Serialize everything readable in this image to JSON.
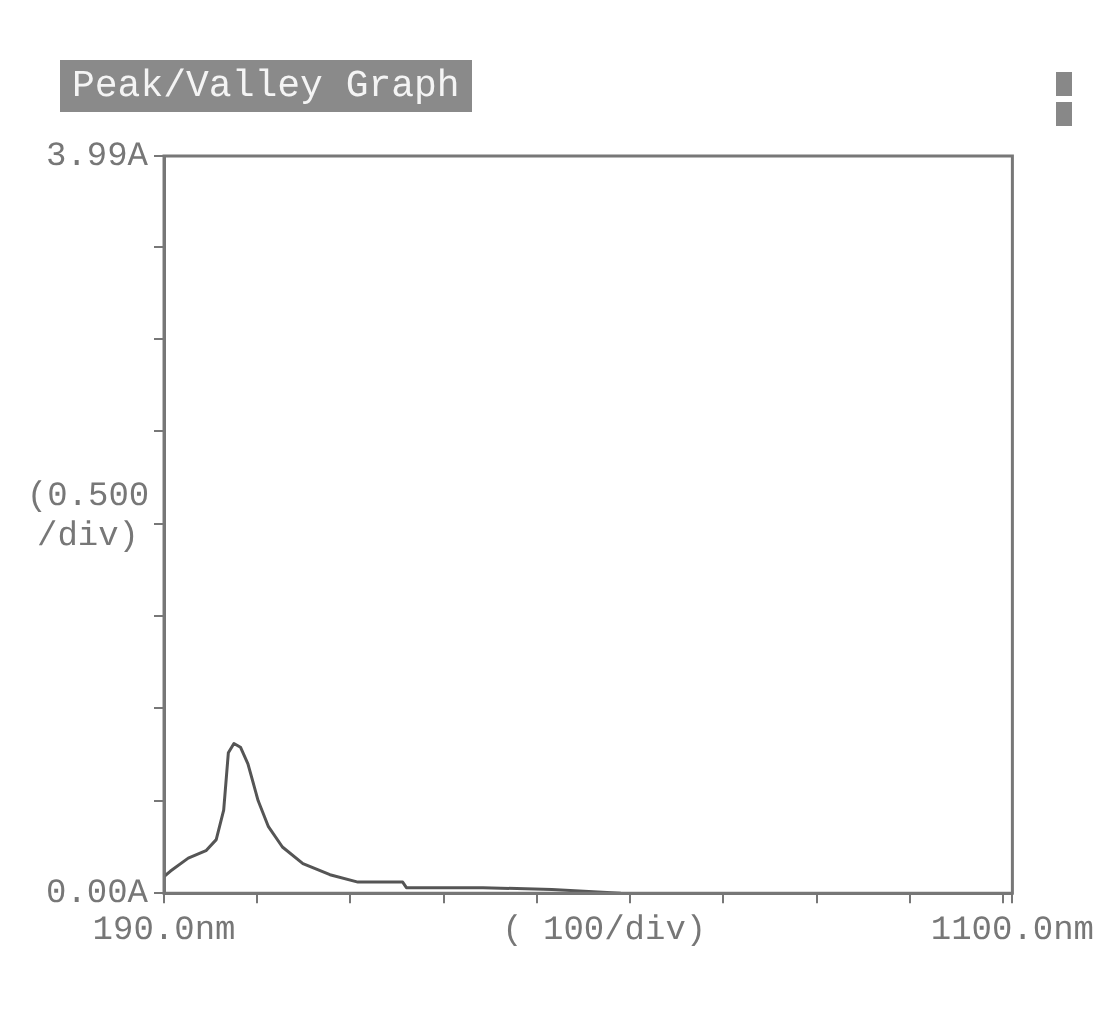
{
  "chart_data": {
    "type": "line",
    "title": "Peak/Valley Graph",
    "xlabel": "( 100/div)",
    "ylabel": "(0.500 /div)",
    "x": [
      190,
      197,
      216,
      235,
      246,
      254,
      259,
      265,
      272,
      280,
      291,
      302,
      317,
      339,
      368,
      398,
      446,
      450,
      532,
      606,
      680
    ],
    "series": [
      {
        "color": "#555555",
        "values": [
          0.09,
          0.12,
          0.19,
          0.23,
          0.29,
          0.45,
          0.76,
          0.81,
          0.79,
          0.7,
          0.5,
          0.36,
          0.25,
          0.16,
          0.1,
          0.06,
          0.06,
          0.03,
          0.03,
          0.02,
          0.0
        ]
      }
    ],
    "xlim": [
      190,
      1100
    ],
    "xticks": [
      {
        "value": 190,
        "label": "190.0nm"
      },
      {
        "value": 290,
        "label": null
      },
      {
        "value": 390,
        "label": null
      },
      {
        "value": 490,
        "label": null
      },
      {
        "value": 590,
        "label": null
      },
      {
        "value": 690,
        "label": null
      },
      {
        "value": 790,
        "label": null
      },
      {
        "value": 890,
        "label": null
      },
      {
        "value": 990,
        "label": null
      },
      {
        "value": 1090,
        "label": null
      },
      {
        "value": 1100,
        "label": "1100.0nm"
      }
    ],
    "ylim": [
      0,
      3.99
    ],
    "yticks": [
      {
        "value": 0,
        "label": "0.00A"
      },
      {
        "value": 0.5,
        "label": null
      },
      {
        "value": 1,
        "label": null
      },
      {
        "value": 1.5,
        "label": null
      },
      {
        "value": 2,
        "label": null
      },
      {
        "value": 2.5,
        "label": null
      },
      {
        "value": 3,
        "label": null
      },
      {
        "value": 3.5,
        "label": null
      },
      {
        "value": 3.99,
        "label": "3.99A"
      }
    ],
    "grid": false,
    "legend": false,
    "marker": "none",
    "line_style": "solid"
  }
}
